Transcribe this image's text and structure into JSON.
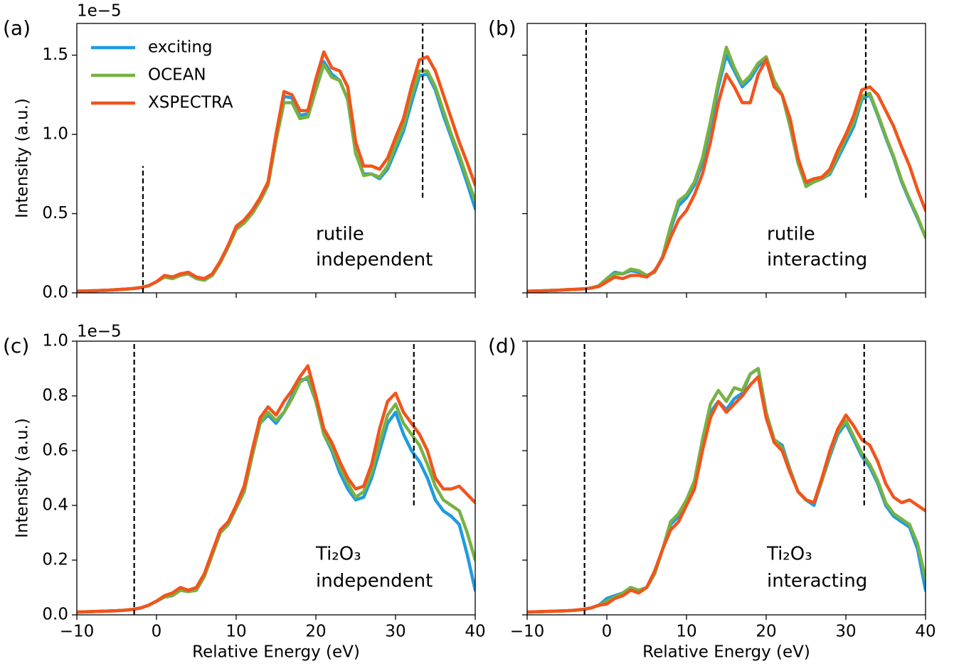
{
  "chart_data": [
    {
      "type": "line",
      "panel_label": "(a)",
      "y_offset_label": "1e−5",
      "ylabel": "Intensity (a.u.)",
      "annotation": [
        "rutile",
        "independent"
      ],
      "legend": "upper left",
      "xlim": [
        -10,
        40
      ],
      "ylim": [
        0,
        1.7
      ],
      "xticks": [
        -10,
        0,
        10,
        20,
        30,
        40
      ],
      "yticks": [
        {
          "value": 0,
          "label": "0.0"
        },
        0.5,
        {
          "value": 1,
          "label": "1.0"
        },
        1.5
      ],
      "vlines": [
        {
          "x": -1.7,
          "ymin": 0,
          "ymax": 0.8
        },
        {
          "x": 33.4,
          "ymin": 0.6,
          "ymax": 1.7
        }
      ],
      "x": [
        -10,
        -9,
        -8,
        -7,
        -6,
        -5,
        -4,
        -3,
        -2,
        -1,
        0,
        1,
        2,
        3,
        4,
        5,
        6,
        7,
        8,
        9,
        10,
        11,
        12,
        13,
        14,
        15,
        16,
        17,
        18,
        19,
        20,
        21,
        22,
        23,
        24,
        25,
        26,
        27,
        28,
        29,
        30,
        31,
        32,
        33,
        34,
        35,
        36,
        37,
        38,
        39,
        40
      ],
      "series": [
        {
          "name": "exciting",
          "color": "#1e9be3",
          "values": [
            0.01,
            0.012,
            0.013,
            0.015,
            0.017,
            0.02,
            0.023,
            0.027,
            0.033,
            0.045,
            0.07,
            0.1,
            0.09,
            0.11,
            0.12,
            0.09,
            0.08,
            0.11,
            0.19,
            0.29,
            0.41,
            0.45,
            0.5,
            0.58,
            0.68,
            0.98,
            1.24,
            1.23,
            1.12,
            1.13,
            1.3,
            1.46,
            1.38,
            1.34,
            1.22,
            0.88,
            0.75,
            0.75,
            0.72,
            0.78,
            0.9,
            1.02,
            1.2,
            1.37,
            1.38,
            1.28,
            1.12,
            0.98,
            0.84,
            0.69,
            0.53
          ]
        },
        {
          "name": "OCEAN",
          "color": "#77b243",
          "values": [
            0.01,
            0.012,
            0.013,
            0.015,
            0.017,
            0.02,
            0.023,
            0.027,
            0.033,
            0.045,
            0.07,
            0.1,
            0.09,
            0.11,
            0.12,
            0.09,
            0.08,
            0.11,
            0.19,
            0.29,
            0.4,
            0.44,
            0.5,
            0.58,
            0.68,
            0.96,
            1.2,
            1.2,
            1.1,
            1.11,
            1.28,
            1.44,
            1.36,
            1.34,
            1.22,
            0.88,
            0.74,
            0.75,
            0.73,
            0.8,
            0.93,
            1.05,
            1.24,
            1.4,
            1.4,
            1.3,
            1.15,
            1.0,
            0.87,
            0.72,
            0.58
          ]
        },
        {
          "name": "XSPECTRA",
          "color": "#f2541b",
          "values": [
            0.01,
            0.012,
            0.013,
            0.015,
            0.017,
            0.02,
            0.023,
            0.027,
            0.033,
            0.045,
            0.07,
            0.11,
            0.1,
            0.12,
            0.13,
            0.1,
            0.09,
            0.12,
            0.2,
            0.3,
            0.42,
            0.46,
            0.52,
            0.6,
            0.7,
            1.0,
            1.27,
            1.25,
            1.15,
            1.15,
            1.35,
            1.52,
            1.42,
            1.4,
            1.3,
            0.95,
            0.8,
            0.8,
            0.78,
            0.85,
            0.98,
            1.1,
            1.3,
            1.47,
            1.49,
            1.4,
            1.25,
            1.1,
            0.95,
            0.82,
            0.68
          ]
        }
      ]
    },
    {
      "type": "line",
      "panel_label": "(b)",
      "annotation": [
        "rutile",
        "interacting"
      ],
      "xlim": [
        -10,
        40
      ],
      "ylim": [
        0,
        1.7
      ],
      "xticks": [
        -10,
        0,
        10,
        20,
        30,
        40
      ],
      "yticks": [
        0,
        0.5,
        1,
        1.5
      ],
      "vlines": [
        {
          "x": -2.6,
          "ymin": 0,
          "ymax": 1.7
        },
        {
          "x": 32.5,
          "ymin": 0.6,
          "ymax": 1.7
        }
      ],
      "x": [
        -10,
        -9,
        -8,
        -7,
        -6,
        -5,
        -4,
        -3,
        -2,
        -1,
        0,
        1,
        2,
        3,
        4,
        5,
        6,
        7,
        8,
        9,
        10,
        11,
        12,
        13,
        14,
        15,
        16,
        17,
        18,
        19,
        20,
        21,
        22,
        23,
        24,
        25,
        26,
        27,
        28,
        29,
        30,
        31,
        32,
        33,
        34,
        35,
        36,
        37,
        38,
        39,
        40
      ],
      "series": [
        {
          "color": "#1e9be3",
          "values": [
            0.01,
            0.012,
            0.013,
            0.015,
            0.017,
            0.02,
            0.022,
            0.025,
            0.03,
            0.045,
            0.09,
            0.13,
            0.12,
            0.14,
            0.13,
            0.11,
            0.13,
            0.22,
            0.4,
            0.55,
            0.6,
            0.68,
            0.82,
            1.05,
            1.3,
            1.5,
            1.4,
            1.3,
            1.35,
            1.43,
            1.48,
            1.33,
            1.25,
            1.05,
            0.82,
            0.68,
            0.7,
            0.72,
            0.75,
            0.85,
            0.95,
            1.05,
            1.22,
            1.25,
            1.12,
            0.98,
            0.85,
            0.7,
            0.58,
            0.47,
            0.35
          ]
        },
        {
          "color": "#77b243",
          "values": [
            0.01,
            0.012,
            0.013,
            0.015,
            0.017,
            0.02,
            0.022,
            0.025,
            0.03,
            0.045,
            0.09,
            0.12,
            0.12,
            0.15,
            0.14,
            0.11,
            0.13,
            0.23,
            0.42,
            0.58,
            0.62,
            0.7,
            0.85,
            1.08,
            1.33,
            1.55,
            1.42,
            1.32,
            1.37,
            1.45,
            1.49,
            1.34,
            1.25,
            1.05,
            0.82,
            0.67,
            0.7,
            0.72,
            0.76,
            0.87,
            0.98,
            1.08,
            1.24,
            1.26,
            1.13,
            0.99,
            0.86,
            0.71,
            0.59,
            0.48,
            0.35
          ]
        },
        {
          "color": "#f2541b",
          "values": [
            0.01,
            0.012,
            0.013,
            0.015,
            0.017,
            0.02,
            0.022,
            0.025,
            0.03,
            0.04,
            0.07,
            0.1,
            0.09,
            0.11,
            0.11,
            0.1,
            0.14,
            0.22,
            0.35,
            0.46,
            0.52,
            0.62,
            0.75,
            0.95,
            1.2,
            1.38,
            1.3,
            1.2,
            1.2,
            1.38,
            1.47,
            1.3,
            1.25,
            1.1,
            0.85,
            0.7,
            0.72,
            0.73,
            0.78,
            0.9,
            1.0,
            1.12,
            1.28,
            1.3,
            1.25,
            1.15,
            1.05,
            0.92,
            0.8,
            0.65,
            0.52
          ]
        }
      ]
    },
    {
      "type": "line",
      "panel_label": "(c)",
      "y_offset_label": "1e−5",
      "ylabel": "Intensity (a.u.)",
      "xlabel": "Relative Energy (eV)",
      "annotation": [
        "Ti₂O₃",
        "independent"
      ],
      "xlim": [
        -10,
        40
      ],
      "ylim": [
        0,
        1.0
      ],
      "xticks": [
        {
          "value": -10,
          "label": "−10"
        },
        0,
        10,
        20,
        30,
        40
      ],
      "yticks": [
        {
          "value": 0,
          "label": "0.0"
        },
        0.2,
        0.4,
        0.6,
        0.8,
        {
          "value": 1,
          "label": "1.0"
        }
      ],
      "vlines": [
        {
          "x": -2.8,
          "ymin": 0,
          "ymax": 1.0
        },
        {
          "x": 32.3,
          "ymin": 0.4,
          "ymax": 1.0
        }
      ],
      "x": [
        -10,
        -9,
        -8,
        -7,
        -6,
        -5,
        -4,
        -3,
        -2,
        -1,
        0,
        1,
        2,
        3,
        4,
        5,
        6,
        7,
        8,
        9,
        10,
        11,
        12,
        13,
        14,
        15,
        16,
        17,
        18,
        19,
        20,
        21,
        22,
        23,
        24,
        25,
        26,
        27,
        28,
        29,
        30,
        31,
        32,
        33,
        34,
        35,
        36,
        37,
        38,
        39,
        40
      ],
      "series": [
        {
          "color": "#1e9be3",
          "values": [
            0.01,
            0.011,
            0.012,
            0.013,
            0.014,
            0.015,
            0.017,
            0.02,
            0.025,
            0.035,
            0.05,
            0.065,
            0.07,
            0.09,
            0.085,
            0.09,
            0.14,
            0.22,
            0.3,
            0.33,
            0.39,
            0.45,
            0.58,
            0.7,
            0.73,
            0.7,
            0.74,
            0.8,
            0.86,
            0.86,
            0.78,
            0.66,
            0.6,
            0.52,
            0.46,
            0.42,
            0.43,
            0.5,
            0.6,
            0.7,
            0.74,
            0.66,
            0.6,
            0.56,
            0.5,
            0.42,
            0.38,
            0.36,
            0.33,
            0.22,
            0.09
          ]
        },
        {
          "color": "#77b243",
          "values": [
            0.01,
            0.011,
            0.012,
            0.013,
            0.014,
            0.015,
            0.017,
            0.02,
            0.025,
            0.035,
            0.05,
            0.065,
            0.07,
            0.09,
            0.085,
            0.09,
            0.14,
            0.22,
            0.3,
            0.33,
            0.39,
            0.45,
            0.58,
            0.7,
            0.74,
            0.71,
            0.74,
            0.79,
            0.85,
            0.87,
            0.78,
            0.66,
            0.61,
            0.54,
            0.48,
            0.43,
            0.45,
            0.52,
            0.63,
            0.73,
            0.77,
            0.7,
            0.66,
            0.62,
            0.55,
            0.47,
            0.42,
            0.4,
            0.38,
            0.3,
            0.2
          ]
        },
        {
          "color": "#f2541b",
          "values": [
            0.01,
            0.011,
            0.012,
            0.013,
            0.014,
            0.015,
            0.017,
            0.02,
            0.025,
            0.035,
            0.05,
            0.07,
            0.08,
            0.1,
            0.09,
            0.1,
            0.15,
            0.23,
            0.31,
            0.34,
            0.4,
            0.47,
            0.6,
            0.72,
            0.76,
            0.73,
            0.78,
            0.82,
            0.87,
            0.91,
            0.8,
            0.68,
            0.63,
            0.56,
            0.5,
            0.46,
            0.47,
            0.55,
            0.68,
            0.78,
            0.81,
            0.74,
            0.7,
            0.66,
            0.6,
            0.5,
            0.46,
            0.46,
            0.47,
            0.44,
            0.41
          ]
        }
      ]
    },
    {
      "type": "line",
      "panel_label": "(d)",
      "xlabel": "Relative Energy (eV)",
      "annotation": [
        "Ti₂O₃",
        "interacting"
      ],
      "xlim": [
        -10,
        40
      ],
      "ylim": [
        0,
        1.0
      ],
      "xticks": [
        {
          "value": -10,
          "label": "−10"
        },
        0,
        10,
        20,
        30,
        40
      ],
      "yticks": [
        0,
        0.2,
        0.4,
        0.6,
        0.8,
        1
      ],
      "vlines": [
        {
          "x": -2.8,
          "ymin": 0,
          "ymax": 1.0
        },
        {
          "x": 32.3,
          "ymin": 0.4,
          "ymax": 1.0
        }
      ],
      "x": [
        -10,
        -9,
        -8,
        -7,
        -6,
        -5,
        -4,
        -3,
        -2,
        -1,
        0,
        1,
        2,
        3,
        4,
        5,
        6,
        7,
        8,
        9,
        10,
        11,
        12,
        13,
        14,
        15,
        16,
        17,
        18,
        19,
        20,
        21,
        22,
        23,
        24,
        25,
        26,
        27,
        28,
        29,
        30,
        31,
        32,
        33,
        34,
        35,
        36,
        37,
        38,
        39,
        40
      ],
      "series": [
        {
          "color": "#1e9be3",
          "values": [
            0.01,
            0.011,
            0.012,
            0.013,
            0.014,
            0.015,
            0.017,
            0.02,
            0.025,
            0.035,
            0.06,
            0.07,
            0.08,
            0.1,
            0.09,
            0.1,
            0.15,
            0.24,
            0.33,
            0.36,
            0.41,
            0.48,
            0.62,
            0.74,
            0.78,
            0.75,
            0.79,
            0.81,
            0.88,
            0.9,
            0.74,
            0.64,
            0.62,
            0.53,
            0.45,
            0.42,
            0.4,
            0.49,
            0.58,
            0.66,
            0.7,
            0.64,
            0.58,
            0.54,
            0.48,
            0.4,
            0.36,
            0.34,
            0.32,
            0.24,
            0.09
          ]
        },
        {
          "color": "#77b243",
          "values": [
            0.01,
            0.011,
            0.012,
            0.013,
            0.014,
            0.015,
            0.017,
            0.02,
            0.025,
            0.035,
            0.05,
            0.065,
            0.08,
            0.1,
            0.09,
            0.1,
            0.15,
            0.24,
            0.34,
            0.37,
            0.42,
            0.49,
            0.64,
            0.77,
            0.82,
            0.78,
            0.83,
            0.82,
            0.88,
            0.9,
            0.74,
            0.64,
            0.61,
            0.53,
            0.45,
            0.42,
            0.41,
            0.49,
            0.59,
            0.67,
            0.71,
            0.65,
            0.59,
            0.55,
            0.49,
            0.41,
            0.37,
            0.35,
            0.33,
            0.26,
            0.13
          ]
        },
        {
          "color": "#f2541b",
          "values": [
            0.01,
            0.011,
            0.012,
            0.013,
            0.014,
            0.015,
            0.017,
            0.02,
            0.025,
            0.035,
            0.04,
            0.06,
            0.07,
            0.09,
            0.08,
            0.1,
            0.16,
            0.24,
            0.31,
            0.34,
            0.4,
            0.46,
            0.6,
            0.72,
            0.78,
            0.74,
            0.77,
            0.8,
            0.84,
            0.87,
            0.72,
            0.63,
            0.6,
            0.52,
            0.45,
            0.42,
            0.41,
            0.5,
            0.6,
            0.68,
            0.73,
            0.69,
            0.64,
            0.62,
            0.56,
            0.48,
            0.43,
            0.41,
            0.42,
            0.4,
            0.38
          ]
        }
      ]
    }
  ]
}
